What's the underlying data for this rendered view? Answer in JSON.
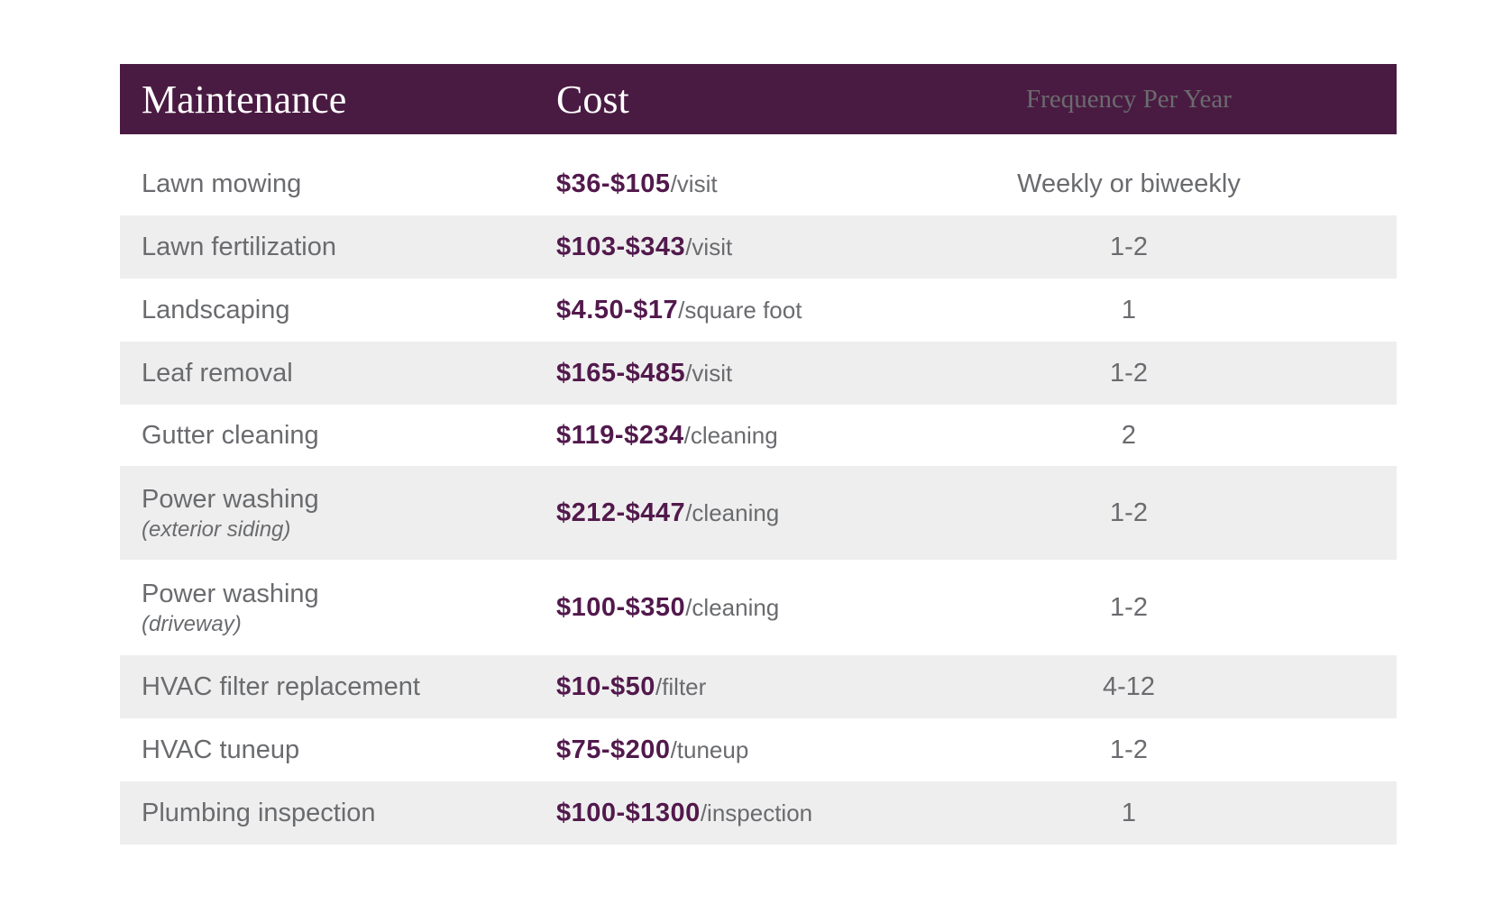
{
  "chart_data": {
    "type": "table",
    "title": "",
    "columns": [
      "Maintenance",
      "Cost",
      "Frequency Per Year"
    ],
    "rows": [
      [
        "Lawn mowing",
        "$36-$105/visit",
        "Weekly or biweekly"
      ],
      [
        "Lawn fertilization",
        "$103-$343/visit",
        "1-2"
      ],
      [
        "Landscaping",
        "$4.50-$17/square foot",
        "1"
      ],
      [
        "Leaf removal",
        "$165-$485/visit",
        "1-2"
      ],
      [
        "Gutter cleaning",
        "$119-$234/cleaning",
        "2"
      ],
      [
        "Power washing (exterior siding)",
        "$212-$447/cleaning",
        "1-2"
      ],
      [
        "Power washing (driveway)",
        "$100-$350/cleaning",
        "1-2"
      ],
      [
        "HVAC filter replacement",
        "$10-$50/filter",
        "4-12"
      ],
      [
        "HVAC tuneup",
        "$75-$200/tuneup",
        "1-2"
      ],
      [
        "Plumbing inspection",
        "$100-$1300/inspection",
        "1"
      ]
    ],
    "layout": {
      "header_style": "solid dark plum bar, white serif text",
      "row_striping": "alternating white and light gray",
      "column_alignment": [
        "left",
        "left",
        "center"
      ]
    }
  },
  "table": {
    "columns": [
      "Maintenance",
      "Cost",
      "Frequency Per Year"
    ],
    "rows": [
      {
        "maintenance": "Lawn mowing",
        "subtitle": "",
        "cost": "$36-$105",
        "unit": "/visit",
        "frequency": "Weekly or biweekly"
      },
      {
        "maintenance": "Lawn fertilization",
        "subtitle": "",
        "cost": "$103-$343",
        "unit": "/visit",
        "frequency": "1-2"
      },
      {
        "maintenance": "Landscaping",
        "subtitle": "",
        "cost": "$4.50-$17",
        "unit": "/square foot",
        "frequency": "1"
      },
      {
        "maintenance": "Leaf removal",
        "subtitle": "",
        "cost": "$165-$485",
        "unit": "/visit",
        "frequency": "1-2"
      },
      {
        "maintenance": "Gutter cleaning",
        "subtitle": "",
        "cost": "$119-$234",
        "unit": "/cleaning",
        "frequency": "2"
      },
      {
        "maintenance": "Power washing",
        "subtitle": "(exterior siding)",
        "cost": "$212-$447",
        "unit": "/cleaning",
        "frequency": "1-2"
      },
      {
        "maintenance": "Power washing",
        "subtitle": "(driveway)",
        "cost": "$100-$350",
        "unit": "/cleaning",
        "frequency": "1-2"
      },
      {
        "maintenance": "HVAC filter replacement",
        "subtitle": "",
        "cost": "$10-$50",
        "unit": "/filter",
        "frequency": "4-12"
      },
      {
        "maintenance": "HVAC tuneup",
        "subtitle": "",
        "cost": "$75-$200",
        "unit": "/tuneup",
        "frequency": "1-2"
      },
      {
        "maintenance": "Plumbing inspection",
        "subtitle": "",
        "cost": "$100-$1300",
        "unit": "/inspection",
        "frequency": "1"
      }
    ]
  },
  "colors": {
    "header_background": "#4a1b42",
    "header_text": "#ffffff",
    "price_text": "#52194c",
    "body_text": "#6a6b6e",
    "row_alt_background": "#eeeeee",
    "page_background": "#ffffff"
  }
}
